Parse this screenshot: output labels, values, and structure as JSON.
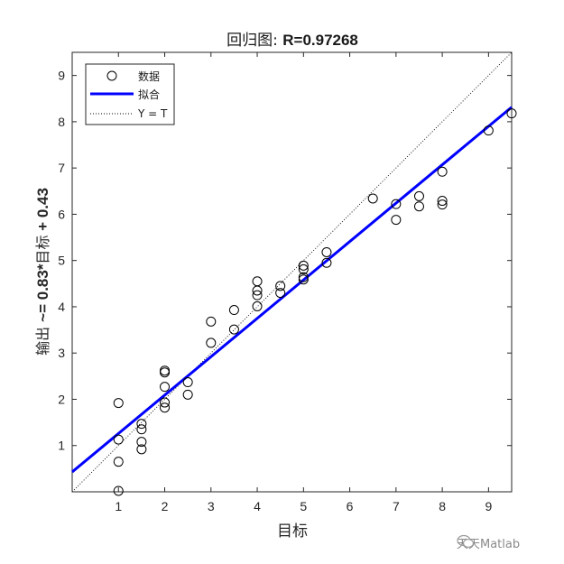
{
  "chart_data": {
    "type": "scatter",
    "title_prefix": "回归图: ",
    "title_value": "R=0.97268",
    "xlabel": "目标",
    "ylabel_prefix": "输出 ",
    "ylabel_formula": "~= 0.83*",
    "ylabel_mid": "目标",
    "ylabel_suffix": " + 0.43",
    "xlim": [
      0,
      9.5
    ],
    "ylim": [
      0,
      9.5
    ],
    "xticks": [
      1,
      2,
      3,
      4,
      5,
      6,
      7,
      8,
      9
    ],
    "yticks": [
      1,
      2,
      3,
      4,
      5,
      6,
      7,
      8,
      9
    ],
    "grid": false,
    "legend_position": "top-left",
    "legend": [
      {
        "label": "数据",
        "style": "circle-marker"
      },
      {
        "label": "拟合",
        "style": "solid-blue-line"
      },
      {
        "label": "Y = T",
        "style": "dotted-line"
      }
    ],
    "fit": {
      "slope": 0.83,
      "intercept": 0.43,
      "color": "#0000ff"
    },
    "identity_line": {
      "color": "#000000"
    },
    "marker_color": "#000000",
    "points": [
      {
        "x": 1,
        "y": 1.92
      },
      {
        "x": 1,
        "y": 1.13
      },
      {
        "x": 1,
        "y": 0.65
      },
      {
        "x": 1,
        "y": 0.02
      },
      {
        "x": 1.5,
        "y": 1.47
      },
      {
        "x": 1.5,
        "y": 1.35
      },
      {
        "x": 1.5,
        "y": 1.08
      },
      {
        "x": 1.5,
        "y": 0.92
      },
      {
        "x": 2,
        "y": 2.62
      },
      {
        "x": 2,
        "y": 2.58
      },
      {
        "x": 2,
        "y": 2.27
      },
      {
        "x": 2,
        "y": 1.93
      },
      {
        "x": 2,
        "y": 1.82
      },
      {
        "x": 2.5,
        "y": 2.37
      },
      {
        "x": 2.5,
        "y": 2.1
      },
      {
        "x": 3,
        "y": 3.68
      },
      {
        "x": 3,
        "y": 3.22
      },
      {
        "x": 3.5,
        "y": 3.93
      },
      {
        "x": 3.5,
        "y": 3.51
      },
      {
        "x": 4,
        "y": 4.55
      },
      {
        "x": 4,
        "y": 4.35
      },
      {
        "x": 4,
        "y": 4.25
      },
      {
        "x": 4,
        "y": 4.01
      },
      {
        "x": 4.5,
        "y": 4.45
      },
      {
        "x": 4.5,
        "y": 4.3
      },
      {
        "x": 5,
        "y": 4.89
      },
      {
        "x": 5,
        "y": 4.81
      },
      {
        "x": 5,
        "y": 4.64
      },
      {
        "x": 5,
        "y": 4.59
      },
      {
        "x": 5.5,
        "y": 5.18
      },
      {
        "x": 5.5,
        "y": 4.95
      },
      {
        "x": 6.5,
        "y": 6.34
      },
      {
        "x": 7,
        "y": 6.22
      },
      {
        "x": 7,
        "y": 5.88
      },
      {
        "x": 7.5,
        "y": 6.39
      },
      {
        "x": 7.5,
        "y": 6.17
      },
      {
        "x": 8,
        "y": 6.92
      },
      {
        "x": 8,
        "y": 6.29
      },
      {
        "x": 8,
        "y": 6.21
      },
      {
        "x": 9,
        "y": 7.81
      },
      {
        "x": 9.5,
        "y": 8.18
      }
    ]
  },
  "watermark": {
    "text": "天天Matlab",
    "icon": "wechat-icon"
  }
}
